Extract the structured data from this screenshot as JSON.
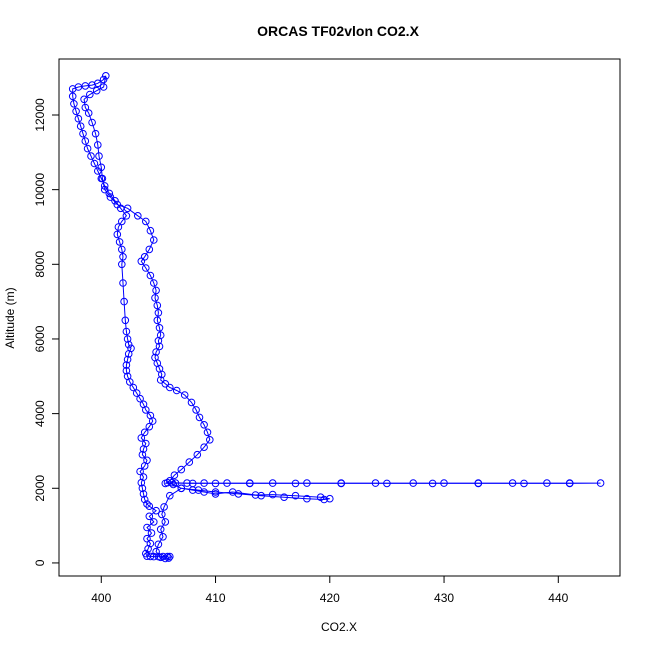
{
  "chart_data": {
    "type": "scatter",
    "title": "ORCAS TF02vlon CO2.X",
    "xlabel": "CO2.X",
    "ylabel": "Altitude (m)",
    "xlim": [
      396.3,
      445.4
    ],
    "ylim": [
      -350,
      13500
    ],
    "x_ticks": [
      400,
      410,
      420,
      430,
      440
    ],
    "y_ticks": [
      0,
      2000,
      4000,
      6000,
      8000,
      10000,
      12000
    ],
    "grid": false,
    "legend": "none",
    "marker": "open-circle",
    "connected": true,
    "color": "#0000ff",
    "series": [
      {
        "points": [
          [
            405.8,
            170
          ],
          [
            405.4,
            170
          ],
          [
            405.0,
            170
          ],
          [
            404.6,
            170
          ],
          [
            404.3,
            175
          ],
          [
            404.0,
            180
          ],
          [
            403.9,
            250
          ],
          [
            404.1,
            380
          ],
          [
            404.3,
            520
          ],
          [
            404.0,
            650
          ],
          [
            404.4,
            800
          ],
          [
            404.0,
            950
          ],
          [
            404.6,
            1100
          ],
          [
            404.2,
            1250
          ],
          [
            404.8,
            1400
          ],
          [
            404.2,
            1520
          ],
          [
            404.0,
            1580
          ],
          [
            403.8,
            1700
          ],
          [
            403.7,
            1850
          ],
          [
            403.6,
            2000
          ],
          [
            403.5,
            2150
          ],
          [
            403.7,
            2300
          ],
          [
            403.4,
            2450
          ],
          [
            403.8,
            2600
          ],
          [
            404.0,
            2750
          ],
          [
            403.6,
            2900
          ],
          [
            403.7,
            3050
          ],
          [
            403.9,
            3200
          ],
          [
            403.5,
            3350
          ],
          [
            403.8,
            3500
          ],
          [
            404.2,
            3650
          ],
          [
            404.5,
            3800
          ],
          [
            404.3,
            3950
          ],
          [
            403.9,
            4100
          ],
          [
            403.7,
            4250
          ],
          [
            403.4,
            4400
          ],
          [
            403.1,
            4550
          ],
          [
            402.8,
            4700
          ],
          [
            402.5,
            4850
          ],
          [
            402.3,
            5000
          ],
          [
            402.2,
            5150
          ],
          [
            402.2,
            5300
          ],
          [
            402.3,
            5450
          ],
          [
            402.4,
            5600
          ],
          [
            402.6,
            5750
          ],
          [
            402.4,
            5850
          ],
          [
            402.3,
            6000
          ],
          [
            402.2,
            6200
          ],
          [
            402.1,
            6500
          ],
          [
            402.0,
            7000
          ],
          [
            401.9,
            7500
          ],
          [
            401.8,
            8000
          ],
          [
            401.9,
            8200
          ],
          [
            401.8,
            8400
          ],
          [
            401.6,
            8600
          ],
          [
            401.4,
            8800
          ],
          [
            401.5,
            9000
          ],
          [
            401.8,
            9150
          ],
          [
            402.2,
            9300
          ],
          [
            401.7,
            9500
          ],
          [
            401.2,
            9700
          ],
          [
            400.7,
            9900
          ],
          [
            400.3,
            10100
          ],
          [
            400.0,
            10300
          ],
          [
            399.7,
            10500
          ],
          [
            399.4,
            10700
          ],
          [
            399.1,
            10900
          ],
          [
            398.8,
            11100
          ],
          [
            398.6,
            11300
          ],
          [
            398.4,
            11500
          ],
          [
            398.2,
            11700
          ],
          [
            398.0,
            11900
          ],
          [
            397.8,
            12100
          ],
          [
            397.6,
            12300
          ],
          [
            397.5,
            12500
          ],
          [
            397.5,
            12700
          ],
          [
            398.0,
            12750
          ],
          [
            398.6,
            12780
          ],
          [
            399.2,
            12800
          ],
          [
            399.7,
            12850
          ],
          [
            400.2,
            12950
          ],
          [
            400.4,
            13050
          ],
          [
            400.2,
            12750
          ],
          [
            399.6,
            12650
          ],
          [
            399.0,
            12550
          ],
          [
            398.5,
            12420
          ],
          [
            398.6,
            12200
          ],
          [
            398.9,
            12050
          ],
          [
            399.2,
            11800
          ],
          [
            399.5,
            11500
          ],
          [
            399.7,
            11200
          ],
          [
            399.8,
            10900
          ],
          [
            400.0,
            10600
          ],
          [
            400.1,
            10300
          ],
          [
            400.3,
            10000
          ],
          [
            400.8,
            9800
          ],
          [
            401.4,
            9600
          ],
          [
            402.3,
            9500
          ],
          [
            403.2,
            9300
          ],
          [
            403.9,
            9150
          ],
          [
            404.3,
            8900
          ],
          [
            404.6,
            8650
          ],
          [
            404.2,
            8400
          ],
          [
            403.8,
            8200
          ],
          [
            403.5,
            8080
          ],
          [
            403.9,
            7900
          ],
          [
            404.3,
            7700
          ],
          [
            404.6,
            7500
          ],
          [
            404.8,
            7300
          ],
          [
            404.7,
            7100
          ],
          [
            404.9,
            6900
          ],
          [
            405.0,
            6700
          ],
          [
            404.9,
            6500
          ],
          [
            405.1,
            6300
          ],
          [
            405.2,
            6100
          ],
          [
            405.0,
            5950
          ],
          [
            405.1,
            5800
          ],
          [
            404.8,
            5650
          ],
          [
            404.7,
            5500
          ],
          [
            404.9,
            5350
          ],
          [
            405.1,
            5200
          ],
          [
            405.3,
            5050
          ],
          [
            405.2,
            4900
          ],
          [
            405.6,
            4800
          ],
          [
            406.0,
            4700
          ],
          [
            406.6,
            4620
          ],
          [
            407.3,
            4500
          ],
          [
            407.9,
            4300
          ],
          [
            408.3,
            4100
          ],
          [
            408.6,
            3900
          ],
          [
            409.0,
            3700
          ],
          [
            409.3,
            3500
          ],
          [
            409.5,
            3300
          ],
          [
            409.0,
            3100
          ],
          [
            408.4,
            2900
          ],
          [
            407.7,
            2700
          ],
          [
            407.0,
            2500
          ],
          [
            406.4,
            2350
          ],
          [
            406.0,
            2200
          ],
          [
            405.6,
            2130
          ],
          [
            406.2,
            2150
          ],
          [
            407.5,
            2140
          ],
          [
            409.0,
            2140
          ],
          [
            411.0,
            2140
          ],
          [
            413.0,
            2140
          ],
          [
            415.0,
            2140
          ],
          [
            418.0,
            2140
          ],
          [
            421.0,
            2140
          ],
          [
            424.0,
            2140
          ],
          [
            427.3,
            2140
          ],
          [
            430.0,
            2140
          ],
          [
            433.0,
            2140
          ],
          [
            436.0,
            2140
          ],
          [
            439.0,
            2140
          ],
          [
            441.0,
            2140
          ],
          [
            443.7,
            2140
          ],
          [
            441.0,
            2130
          ],
          [
            437.0,
            2130
          ],
          [
            433.0,
            2130
          ],
          [
            429.0,
            2130
          ],
          [
            425.0,
            2130
          ],
          [
            421.0,
            2130
          ],
          [
            417.0,
            2130
          ],
          [
            413.0,
            2130
          ],
          [
            410.0,
            2130
          ],
          [
            408.0,
            2130
          ],
          [
            406.5,
            2140
          ],
          [
            405.8,
            2150
          ],
          [
            406.3,
            2100
          ],
          [
            407.0,
            2000
          ],
          [
            408.0,
            1950
          ],
          [
            409.0,
            1900
          ],
          [
            410.0,
            1850
          ],
          [
            411.5,
            1900
          ],
          [
            413.5,
            1820
          ],
          [
            415.0,
            1830
          ],
          [
            417.0,
            1800
          ],
          [
            419.2,
            1760
          ],
          [
            420.0,
            1720
          ],
          [
            419.5,
            1700
          ],
          [
            418.0,
            1720
          ],
          [
            416.0,
            1760
          ],
          [
            414.0,
            1800
          ],
          [
            412.0,
            1850
          ],
          [
            410.0,
            1900
          ],
          [
            408.5,
            1950
          ],
          [
            407.0,
            2000
          ],
          [
            406.0,
            1800
          ],
          [
            405.5,
            1500
          ],
          [
            405.3,
            1300
          ],
          [
            405.6,
            1100
          ],
          [
            405.2,
            900
          ],
          [
            405.4,
            700
          ],
          [
            405.0,
            500
          ],
          [
            404.8,
            300
          ],
          [
            405.2,
            150
          ],
          [
            405.6,
            120
          ],
          [
            405.9,
            130
          ],
          [
            406.0,
            170
          ]
        ]
      }
    ]
  }
}
